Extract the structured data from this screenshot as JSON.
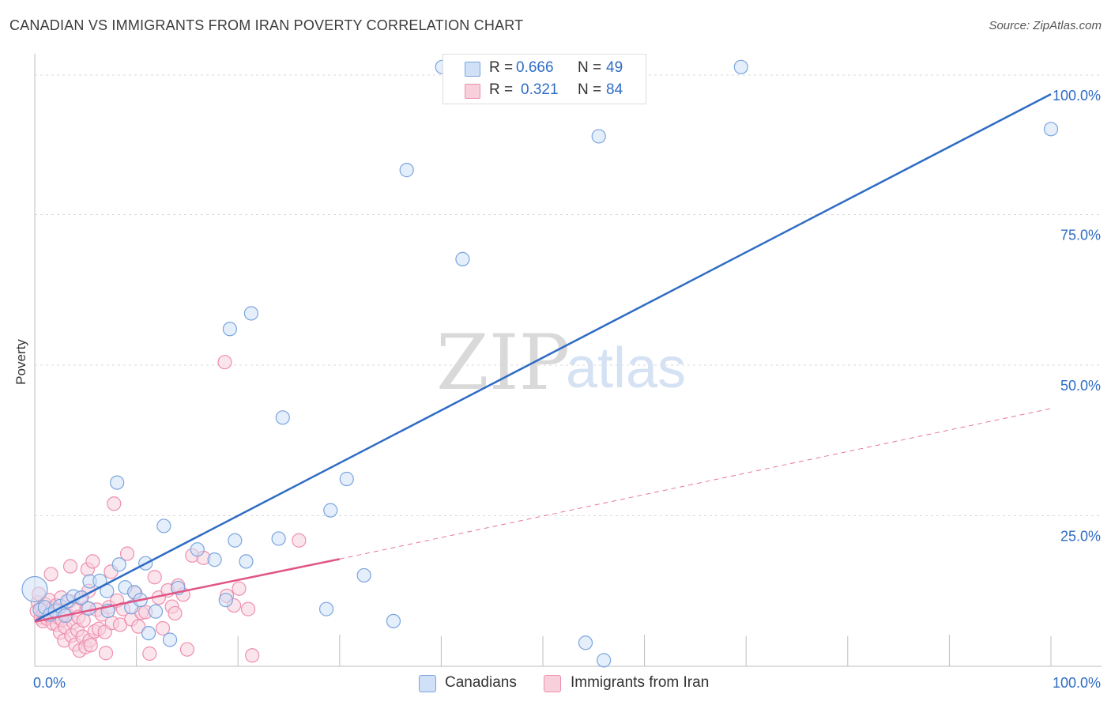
{
  "title": "CANADIAN VS IMMIGRANTS FROM IRAN POVERTY CORRELATION CHART",
  "source": "Source: ZipAtlas.com",
  "watermark": {
    "zip": "ZIP",
    "atlas": "atlas"
  },
  "legend": {
    "canadians": {
      "r_label": "R =",
      "r_value": "0.666",
      "n_label": "N =",
      "n_value": "49",
      "name": "Canadians"
    },
    "iran": {
      "r_label": "R =",
      "r_value": "0.321",
      "n_label": "N =",
      "n_value": "84",
      "name": "Immigrants from Iran"
    }
  },
  "colors": {
    "blue": "#2f6cc4",
    "blue_fill": "#cfe0f7",
    "blue_stroke": "#7aa5dd",
    "pink": "#e05585",
    "pink_fill": "#f8d0dc",
    "pink_stroke": "#ee8fae",
    "grid": "#d9d9d9",
    "axis_text": "#2f6cc4"
  },
  "chart_data": {
    "type": "scatter",
    "title": "CANADIAN VS IMMIGRANTS FROM IRAN POVERTY CORRELATION CHART",
    "xlabel": "",
    "ylabel": "Poverty",
    "xlim": [
      0,
      100
    ],
    "ylim": [
      0,
      102
    ],
    "x_tick_labels": [
      "0.0%",
      "100.0%"
    ],
    "y_ticks": [
      {
        "value": 25,
        "label": "25.0%"
      },
      {
        "value": 50,
        "label": "50.0%"
      },
      {
        "value": 75,
        "label": "75.0%"
      },
      {
        "value": 100,
        "label": "100.0%"
      }
    ],
    "series": [
      {
        "name": "Canadians",
        "color": "#2f6cc4",
        "trend": {
          "x": [
            0,
            100
          ],
          "y": [
            7.5,
            95.0
          ],
          "style": "solid"
        },
        "points": [
          [
            0.0,
            12.8
          ],
          [
            0.5,
            9.4
          ],
          [
            1.0,
            9.8
          ],
          [
            1.5,
            8.6
          ],
          [
            2.0,
            9.2
          ],
          [
            2.5,
            10.0
          ],
          [
            3.0,
            8.4
          ],
          [
            3.2,
            10.8
          ],
          [
            3.8,
            11.6
          ],
          [
            4.6,
            11.4
          ],
          [
            5.3,
            9.6
          ],
          [
            5.4,
            14.1
          ],
          [
            6.4,
            14.2
          ],
          [
            7.2,
            9.2
          ],
          [
            7.1,
            12.5
          ],
          [
            8.1,
            30.5
          ],
          [
            8.3,
            16.9
          ],
          [
            8.9,
            13.1
          ],
          [
            9.5,
            9.8
          ],
          [
            9.8,
            12.3
          ],
          [
            10.4,
            11.0
          ],
          [
            10.9,
            17.1
          ],
          [
            11.2,
            5.5
          ],
          [
            11.9,
            9.1
          ],
          [
            12.7,
            23.3
          ],
          [
            13.3,
            4.4
          ],
          [
            14.1,
            13.0
          ],
          [
            16.0,
            19.4
          ],
          [
            17.7,
            17.7
          ],
          [
            18.8,
            11.0
          ],
          [
            19.2,
            56.0
          ],
          [
            19.7,
            20.9
          ],
          [
            20.8,
            17.4
          ],
          [
            21.3,
            58.6
          ],
          [
            24.0,
            21.2
          ],
          [
            24.4,
            41.3
          ],
          [
            28.7,
            9.5
          ],
          [
            29.1,
            25.9
          ],
          [
            30.7,
            31.1
          ],
          [
            32.4,
            15.1
          ],
          [
            35.3,
            7.5
          ],
          [
            36.6,
            82.4
          ],
          [
            40.1,
            99.5
          ],
          [
            42.1,
            67.6
          ],
          [
            54.2,
            3.9
          ],
          [
            55.5,
            88.0
          ],
          [
            56.0,
            1.0
          ],
          [
            69.5,
            99.5
          ],
          [
            100.0,
            89.2
          ]
        ]
      },
      {
        "name": "Immigrants from Iran",
        "color": "#e05585",
        "trend": {
          "x": [
            0,
            30
          ],
          "y": [
            7.4,
            17.8
          ],
          "style": "solid",
          "extension": {
            "x": [
              30,
              100
            ],
            "y": [
              17.8,
              42.8
            ],
            "style": "dashed"
          }
        },
        "points": [
          [
            0.2,
            9.2
          ],
          [
            0.3,
            10.6
          ],
          [
            0.4,
            12.0
          ],
          [
            0.6,
            8.1
          ],
          [
            0.7,
            9.6
          ],
          [
            0.8,
            7.5
          ],
          [
            0.9,
            8.8
          ],
          [
            1.0,
            10.3
          ],
          [
            1.1,
            9.0
          ],
          [
            1.2,
            7.9
          ],
          [
            1.4,
            11.0
          ],
          [
            1.5,
            8.3
          ],
          [
            1.6,
            15.3
          ],
          [
            1.7,
            9.5
          ],
          [
            1.8,
            7.1
          ],
          [
            1.9,
            8.7
          ],
          [
            2.1,
            10.1
          ],
          [
            2.2,
            6.9
          ],
          [
            2.3,
            9.3
          ],
          [
            2.4,
            8.0
          ],
          [
            2.5,
            5.6
          ],
          [
            2.6,
            11.4
          ],
          [
            2.7,
            7.7
          ],
          [
            2.8,
            9.1
          ],
          [
            2.9,
            4.3
          ],
          [
            3.0,
            6.5
          ],
          [
            3.2,
            8.5
          ],
          [
            3.4,
            10.8
          ],
          [
            3.5,
            16.6
          ],
          [
            3.6,
            5.1
          ],
          [
            3.8,
            7.3
          ],
          [
            3.9,
            9.9
          ],
          [
            4.0,
            3.6
          ],
          [
            4.2,
            6.0
          ],
          [
            4.3,
            8.2
          ],
          [
            4.4,
            2.6
          ],
          [
            4.5,
            11.3
          ],
          [
            4.7,
            4.9
          ],
          [
            4.8,
            7.6
          ],
          [
            5.0,
            3.2
          ],
          [
            5.1,
            9.7
          ],
          [
            5.2,
            16.1
          ],
          [
            5.3,
            12.5
          ],
          [
            5.4,
            4.3
          ],
          [
            5.5,
            3.5
          ],
          [
            5.7,
            17.4
          ],
          [
            5.9,
            5.8
          ],
          [
            6.1,
            9.4
          ],
          [
            6.3,
            6.2
          ],
          [
            6.6,
            8.6
          ],
          [
            6.9,
            5.7
          ],
          [
            7.0,
            2.2
          ],
          [
            7.3,
            9.8
          ],
          [
            7.5,
            15.7
          ],
          [
            7.6,
            7.2
          ],
          [
            7.8,
            27.0
          ],
          [
            8.1,
            10.9
          ],
          [
            8.4,
            6.9
          ],
          [
            8.7,
            9.5
          ],
          [
            9.1,
            18.7
          ],
          [
            9.5,
            7.8
          ],
          [
            9.9,
            12.1
          ],
          [
            10.2,
            6.6
          ],
          [
            10.5,
            8.9
          ],
          [
            10.9,
            9.0
          ],
          [
            11.3,
            2.1
          ],
          [
            11.8,
            14.8
          ],
          [
            12.2,
            11.4
          ],
          [
            12.6,
            6.3
          ],
          [
            13.1,
            12.6
          ],
          [
            13.5,
            9.9
          ],
          [
            13.8,
            8.8
          ],
          [
            14.1,
            13.4
          ],
          [
            14.6,
            11.9
          ],
          [
            15.0,
            2.8
          ],
          [
            15.5,
            18.4
          ],
          [
            16.6,
            18.0
          ],
          [
            18.7,
            50.5
          ],
          [
            18.9,
            11.7
          ],
          [
            19.6,
            10.1
          ],
          [
            20.1,
            12.9
          ],
          [
            21.0,
            9.5
          ],
          [
            21.4,
            1.8
          ],
          [
            26.0,
            20.9
          ]
        ]
      }
    ]
  }
}
